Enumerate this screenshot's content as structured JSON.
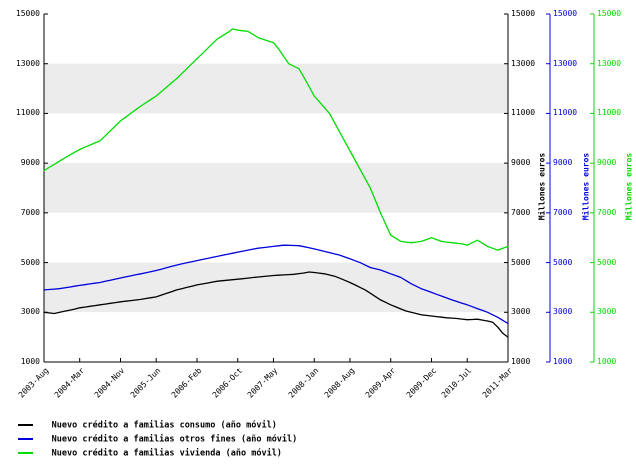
{
  "chart_data": {
    "type": "line",
    "title": "",
    "ylim": [
      1000,
      15000
    ],
    "y_ticks": [
      1000,
      3000,
      5000,
      7000,
      9000,
      11000,
      13000,
      15000
    ],
    "n_points": 92,
    "x_tick_labels": [
      "2003-Aug",
      "2004-Mar",
      "2004-Nov",
      "2005-Jun",
      "2006-Feb",
      "2006-Oct",
      "2007-May",
      "2008-Jan",
      "2008-Aug",
      "2009-Apr",
      "2009-Dec",
      "2010-Jul",
      "2011-Mar"
    ],
    "x_tick_indices": [
      0,
      7,
      15,
      22,
      30,
      38,
      45,
      53,
      60,
      68,
      76,
      83,
      91
    ],
    "grid": "alternating-bands",
    "legend_position": "bottom-left",
    "axes": {
      "left": {
        "color": "#000000",
        "label": ""
      },
      "right1": {
        "color": "#000000",
        "label": "Millones euros"
      },
      "right2": {
        "color": "#0000dd",
        "label": "Millones euros"
      },
      "right3": {
        "color": "#00dd00",
        "label": "Millones euros"
      }
    },
    "series": [
      {
        "name": "consumo",
        "label": "Nuevo crédito a familias consumo (año móvil)",
        "color": "#000000",
        "values": [
          3000,
          2975,
          2950,
          2995,
          3040,
          3085,
          3130,
          3180,
          3210,
          3240,
          3270,
          3300,
          3330,
          3360,
          3390,
          3420,
          3445,
          3470,
          3495,
          3520,
          3553,
          3587,
          3620,
          3690,
          3760,
          3830,
          3900,
          3950,
          4000,
          4050,
          4100,
          4138,
          4175,
          4213,
          4250,
          4270,
          4290,
          4310,
          4330,
          4353,
          4375,
          4398,
          4420,
          4440,
          4460,
          4480,
          4493,
          4505,
          4518,
          4530,
          4555,
          4580,
          4620,
          4600,
          4575,
          4550,
          4500,
          4450,
          4370,
          4285,
          4200,
          4100,
          4000,
          3900,
          3767,
          3633,
          3500,
          3400,
          3300,
          3217,
          3133,
          3050,
          3000,
          2950,
          2900,
          2875,
          2850,
          2827,
          2803,
          2780,
          2765,
          2750,
          2725,
          2700,
          2710,
          2720,
          2685,
          2650,
          2600,
          2400,
          2150,
          2000
        ]
      },
      {
        "name": "otros_fines",
        "label": "Nuevo crédito a familias otros fines (año móvil)",
        "color": "#0000dd",
        "values": [
          3900,
          3917,
          3933,
          3950,
          3983,
          4015,
          4048,
          4080,
          4110,
          4140,
          4170,
          4200,
          4245,
          4290,
          4335,
          4380,
          4423,
          4465,
          4508,
          4550,
          4593,
          4637,
          4680,
          4735,
          4790,
          4845,
          4900,
          4945,
          4990,
          5035,
          5080,
          5123,
          5165,
          5208,
          5250,
          5293,
          5335,
          5378,
          5420,
          5460,
          5500,
          5540,
          5580,
          5603,
          5627,
          5650,
          5675,
          5700,
          5693,
          5687,
          5680,
          5637,
          5593,
          5550,
          5500,
          5450,
          5400,
          5350,
          5300,
          5225,
          5150,
          5075,
          5000,
          4900,
          4800,
          4750,
          4700,
          4625,
          4550,
          4475,
          4400,
          4275,
          4150,
          4050,
          3950,
          3875,
          3800,
          3725,
          3650,
          3575,
          3500,
          3433,
          3367,
          3300,
          3225,
          3150,
          3075,
          3000,
          2900,
          2800,
          2675,
          2550
        ]
      },
      {
        "name": "vivienda",
        "label": "Nuevo crédito a familias vivienda (año móvil)",
        "color": "#00dd00",
        "values": [
          8700,
          8825,
          8950,
          9075,
          9200,
          9320,
          9435,
          9550,
          9640,
          9725,
          9815,
          9900,
          10100,
          10300,
          10500,
          10700,
          10850,
          11000,
          11150,
          11300,
          11430,
          11570,
          11700,
          11875,
          12050,
          12225,
          12400,
          12600,
          12800,
          13000,
          13200,
          13400,
          13600,
          13800,
          14000,
          14125,
          14250,
          14400,
          14350,
          14325,
          14300,
          14175,
          14050,
          13980,
          13910,
          13850,
          13600,
          13300,
          13000,
          12900,
          12800,
          12450,
          12080,
          11700,
          11470,
          11235,
          11000,
          10625,
          10250,
          9875,
          9500,
          9125,
          8750,
          8375,
          8000,
          7500,
          7000,
          6550,
          6100,
          5975,
          5850,
          5825,
          5800,
          5825,
          5850,
          5925,
          6000,
          5925,
          5850,
          5825,
          5800,
          5775,
          5750,
          5700,
          5800,
          5900,
          5775,
          5650,
          5575,
          5500,
          5575,
          5650
        ]
      }
    ]
  },
  "colors": {
    "band": "#ececec",
    "background": "#ffffff"
  }
}
